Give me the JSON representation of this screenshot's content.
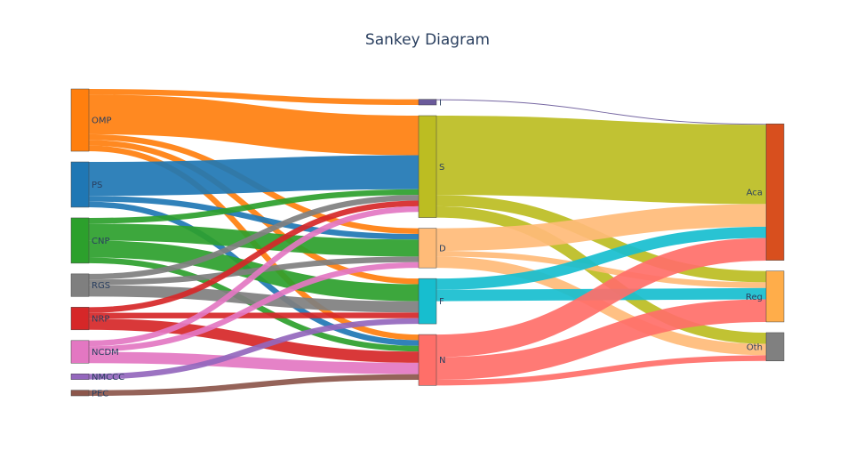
{
  "chart_data": {
    "type": "sankey",
    "title": "Sankey Diagram",
    "nodes": [
      {
        "id": "OMP",
        "label": "OMP",
        "color": "#ff7f0e"
      },
      {
        "id": "PS",
        "label": "PS",
        "color": "#1f77b4"
      },
      {
        "id": "CNP",
        "label": "CNP",
        "color": "#2ca02c"
      },
      {
        "id": "RGS",
        "label": "RGS",
        "color": "#7f7f7f"
      },
      {
        "id": "NRP",
        "label": "NRP",
        "color": "#d62728"
      },
      {
        "id": "NCDM",
        "label": "NCDM",
        "color": "#e377c2"
      },
      {
        "id": "NMCCC",
        "label": "NMCCC",
        "color": "#9467bd"
      },
      {
        "id": "PEC",
        "label": "PEC",
        "color": "#8c564b"
      },
      {
        "id": "I",
        "label": "I",
        "color": "#6a5a9a"
      },
      {
        "id": "S",
        "label": "S",
        "color": "#bcbd22"
      },
      {
        "id": "D",
        "label": "D",
        "color": "#ffbb78"
      },
      {
        "id": "F",
        "label": "F",
        "color": "#17becf"
      },
      {
        "id": "N",
        "label": "N",
        "color": "#ff6f69"
      },
      {
        "id": "Aca",
        "label": "Aca",
        "color": "#d84f1e"
      },
      {
        "id": "Reg",
        "label": "Reg",
        "color": "#ffad4a"
      },
      {
        "id": "Oth",
        "label": "Oth",
        "color": "#808080"
      }
    ],
    "columns": [
      [
        "OMP",
        "PS",
        "CNP",
        "RGS",
        "NRP",
        "NCDM",
        "NMCCC",
        "PEC"
      ],
      [
        "I",
        "S",
        "D",
        "F",
        "N"
      ],
      [
        "Aca",
        "Reg",
        "Oth"
      ]
    ],
    "links": [
      {
        "source": "OMP",
        "target": "I",
        "value": 1.5
      },
      {
        "source": "OMP",
        "target": "S",
        "value": 10.5
      },
      {
        "source": "OMP",
        "target": "D",
        "value": 1.5
      },
      {
        "source": "OMP",
        "target": "F",
        "value": 1.5
      },
      {
        "source": "OMP",
        "target": "N",
        "value": 1.5
      },
      {
        "source": "PS",
        "target": "S",
        "value": 9
      },
      {
        "source": "PS",
        "target": "D",
        "value": 1.5
      },
      {
        "source": "PS",
        "target": "N",
        "value": 1.5
      },
      {
        "source": "CNP",
        "target": "S",
        "value": 1.5
      },
      {
        "source": "CNP",
        "target": "D",
        "value": 4.5
      },
      {
        "source": "CNP",
        "target": "F",
        "value": 4.5
      },
      {
        "source": "CNP",
        "target": "N",
        "value": 1.5
      },
      {
        "source": "RGS",
        "target": "S",
        "value": 1.5
      },
      {
        "source": "RGS",
        "target": "D",
        "value": 1.5
      },
      {
        "source": "RGS",
        "target": "F",
        "value": 3
      },
      {
        "source": "NRP",
        "target": "S",
        "value": 1.5
      },
      {
        "source": "NRP",
        "target": "F",
        "value": 1.5
      },
      {
        "source": "NRP",
        "target": "N",
        "value": 3
      },
      {
        "source": "NCDM",
        "target": "S",
        "value": 1.5
      },
      {
        "source": "NCDM",
        "target": "D",
        "value": 1.5
      },
      {
        "source": "NCDM",
        "target": "N",
        "value": 3
      },
      {
        "source": "NMCCC",
        "target": "F",
        "value": 1.5
      },
      {
        "source": "PEC",
        "target": "N",
        "value": 1.5
      },
      {
        "source": "I",
        "target": "Aca",
        "value": 0.15
      },
      {
        "source": "S",
        "target": "Aca",
        "value": 21
      },
      {
        "source": "S",
        "target": "Reg",
        "value": 3
      },
      {
        "source": "S",
        "target": "Oth",
        "value": 3
      },
      {
        "source": "D",
        "target": "Aca",
        "value": 6
      },
      {
        "source": "D",
        "target": "Reg",
        "value": 1.5
      },
      {
        "source": "D",
        "target": "Oth",
        "value": 3
      },
      {
        "source": "F",
        "target": "Aca",
        "value": 3
      },
      {
        "source": "F",
        "target": "Reg",
        "value": 3
      },
      {
        "source": "N",
        "target": "Aca",
        "value": 6
      },
      {
        "source": "N",
        "target": "Reg",
        "value": 6
      },
      {
        "source": "N",
        "target": "Oth",
        "value": 1.5
      }
    ]
  }
}
